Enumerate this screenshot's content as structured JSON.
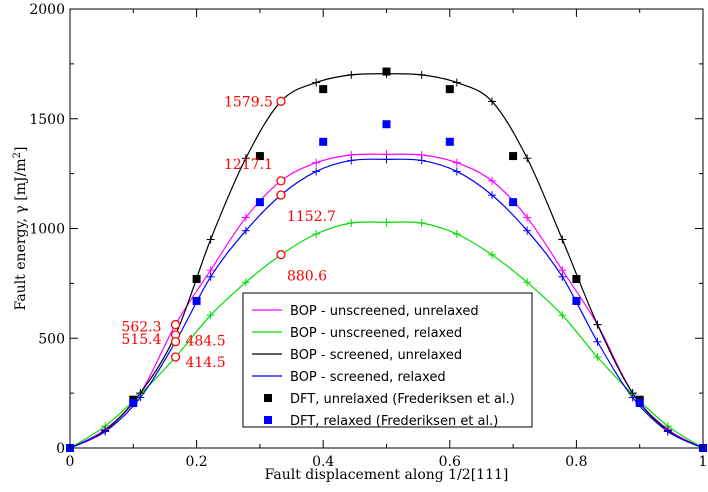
{
  "chart_data": {
    "type": "line",
    "xlabel": "Fault displacement along 1/2[111]",
    "ylabel_parts": {
      "text": "Fault energy,  γ [mJ/m",
      "sup": "2",
      "end": "]"
    },
    "xlim": [
      0,
      1
    ],
    "ylim": [
      0,
      2000
    ],
    "x_ticks": [
      0,
      0.2,
      0.4,
      0.6,
      0.8,
      1
    ],
    "x_tick_labels": [
      "0",
      "0.2",
      "0.4",
      "0.6",
      "0.8",
      "1"
    ],
    "y_ticks": [
      0,
      500,
      1000,
      1500,
      2000
    ],
    "y_tick_labels": [
      "0",
      "500",
      "1000",
      "1500",
      "2000"
    ],
    "grid": false,
    "legend_position": "bottom-center",
    "series": [
      {
        "name": "BOP - unscreened, unrelaxed",
        "color": "#ff00ff",
        "marker": "plus",
        "line": true,
        "x": [
          0,
          0.0556,
          0.1111,
          0.1667,
          0.2222,
          0.2778,
          0.3333,
          0.3889,
          0.4444,
          0.5,
          0.5556,
          0.6111,
          0.6667,
          0.7222,
          0.7778,
          0.8333,
          0.8889,
          0.9444,
          1
        ],
        "y": [
          0,
          85,
          250,
          562.3,
          810,
          1050,
          1217.1,
          1300,
          1335,
          1338,
          1335,
          1300,
          1217,
          1050,
          810,
          562,
          250,
          85,
          0
        ]
      },
      {
        "name": "BOP - unscreened, relaxed",
        "color": "#00dd00",
        "marker": "plus",
        "line": true,
        "x": [
          0,
          0.0556,
          0.1111,
          0.1667,
          0.2222,
          0.2778,
          0.3333,
          0.3889,
          0.4444,
          0.5,
          0.5556,
          0.6111,
          0.6667,
          0.7222,
          0.7778,
          0.8333,
          0.8889,
          0.9444,
          1
        ],
        "y": [
          0,
          100,
          245,
          414.5,
          605,
          755,
          880.6,
          975,
          1025,
          1028,
          1025,
          975,
          880,
          755,
          605,
          414,
          245,
          100,
          0
        ]
      },
      {
        "name": "BOP - screened, unrelaxed",
        "color": "#000000",
        "marker": "plus",
        "line": true,
        "x": [
          0,
          0.0556,
          0.1111,
          0.1667,
          0.2222,
          0.2778,
          0.3333,
          0.3889,
          0.4444,
          0.5,
          0.5556,
          0.6111,
          0.6667,
          0.7222,
          0.7778,
          0.8333,
          0.8889,
          0.9444,
          1
        ],
        "y": [
          0,
          80,
          250,
          515.4,
          950,
          1320,
          1579.5,
          1665,
          1700,
          1705,
          1700,
          1665,
          1579,
          1320,
          950,
          562,
          250,
          80,
          0
        ]
      },
      {
        "name": "BOP - screened, relaxed",
        "color": "#0000ff",
        "marker": "plus",
        "line": true,
        "x": [
          0,
          0.0556,
          0.1111,
          0.1667,
          0.2222,
          0.2778,
          0.3333,
          0.3889,
          0.4444,
          0.5,
          0.5556,
          0.6111,
          0.6667,
          0.7222,
          0.7778,
          0.8333,
          0.8889,
          0.9444,
          1
        ],
        "y": [
          0,
          75,
          230,
          484.5,
          780,
          990,
          1152.7,
          1260,
          1310,
          1315,
          1310,
          1260,
          1152,
          990,
          780,
          484,
          230,
          75,
          0
        ]
      },
      {
        "name": "DFT, unrelaxed (Frederiksen et al.)",
        "color": "#000000",
        "marker": "square",
        "line": false,
        "x": [
          0,
          0.1,
          0.2,
          0.3,
          0.4,
          0.5,
          0.6,
          0.7,
          0.8,
          0.9,
          1
        ],
        "y": [
          0,
          220,
          770,
          1330,
          1635,
          1715,
          1635,
          1330,
          770,
          220,
          0
        ]
      },
      {
        "name": "DFT, relaxed (Frederiksen et al.)",
        "color": "#0000ff",
        "marker": "square",
        "line": false,
        "x": [
          0,
          0.1,
          0.2,
          0.3,
          0.4,
          0.5,
          0.6,
          0.7,
          0.8,
          0.9,
          1
        ],
        "y": [
          0,
          205,
          670,
          1120,
          1395,
          1475,
          1395,
          1120,
          670,
          205,
          0
        ]
      }
    ],
    "annotations": [
      {
        "text": "1579.5",
        "x": 0.3333,
        "y": 1579.5,
        "anchor": "left"
      },
      {
        "text": "1217.1",
        "x": 0.3333,
        "y": 1217.1,
        "anchor": "left-below"
      },
      {
        "text": "1152.7",
        "x": 0.3333,
        "y": 1152.7,
        "anchor": "right-below"
      },
      {
        "text": "880.6",
        "x": 0.3333,
        "y": 880.6,
        "anchor": "right-below"
      },
      {
        "text": "562.3",
        "x": 0.1667,
        "y": 562.3,
        "anchor": "left"
      },
      {
        "text": "515.4",
        "x": 0.1667,
        "y": 515.4,
        "anchor": "left"
      },
      {
        "text": "484.5",
        "x": 0.1667,
        "y": 484.5,
        "anchor": "right"
      },
      {
        "text": "414.5",
        "x": 0.1667,
        "y": 414.5,
        "anchor": "right"
      }
    ],
    "annotation_color": "#ff0000"
  }
}
